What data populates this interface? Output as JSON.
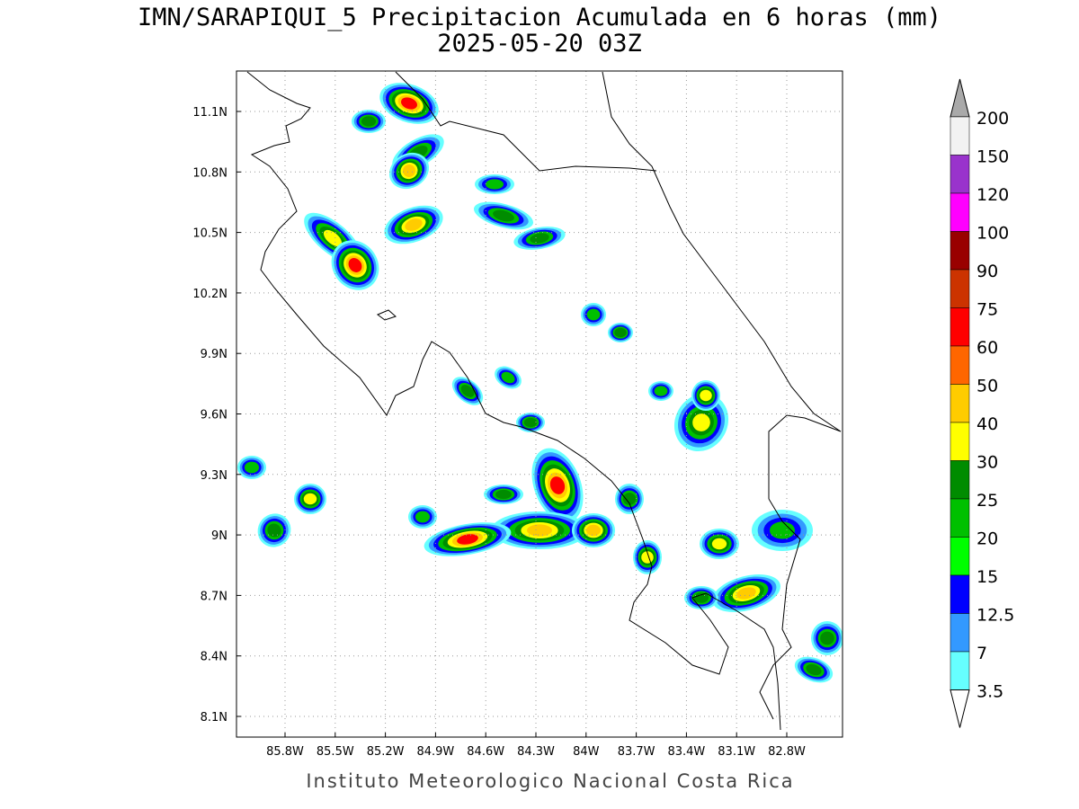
{
  "header": {
    "title": "IMN/SARAPIQUI_5 Precipitacion Acumulada en 6 horas (mm)",
    "subtitle": "2025-05-20 03Z"
  },
  "map": {
    "lon_labels": [
      "85.8W",
      "85.5W",
      "85.2W",
      "84.9W",
      "84.6W",
      "84.3W",
      "84W",
      "83.7W",
      "83.4W",
      "83.1W",
      "82.8W"
    ],
    "lat_labels": [
      "11.1N",
      "10.8N",
      "10.5N",
      "10.2N",
      "9.9N",
      "9.6N",
      "9.3N",
      "9N",
      "8.7N",
      "8.4N",
      "8.1N"
    ]
  },
  "colorbar": {
    "levels": [
      200,
      150,
      120,
      100,
      90,
      75,
      60,
      50,
      40,
      30,
      25,
      20,
      15,
      12.5,
      7,
      3.5
    ],
    "colors": [
      "#f2f2f2",
      "#9933cc",
      "#ff00ff",
      "#990000",
      "#cc3300",
      "#ff0000",
      "#ff6600",
      "#ffcc00",
      "#ffff00",
      "#008c00",
      "#00c000",
      "#00ff00",
      "#0000ff",
      "#3399ff",
      "#66ffff"
    ],
    "over_color": "#a9a9a9",
    "under_color": "#ffffff"
  },
  "footer": {
    "credit": "Instituto Meteorologico Nacional Costa Rica"
  }
}
